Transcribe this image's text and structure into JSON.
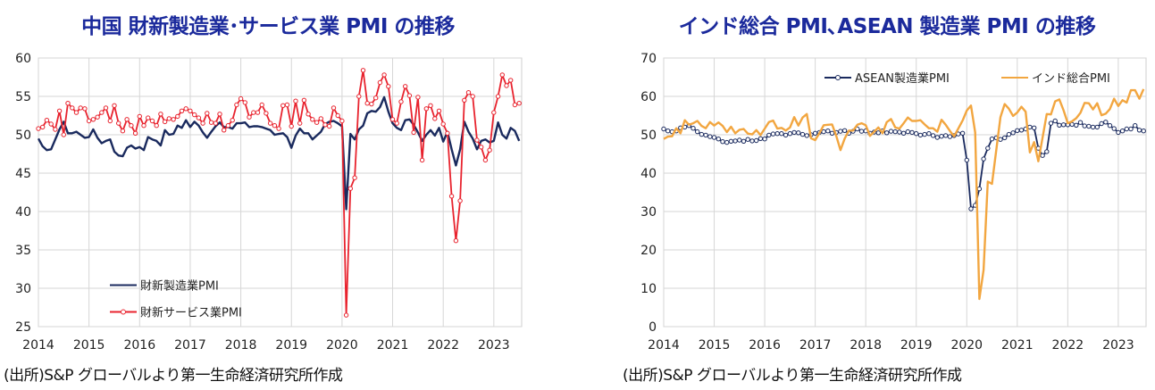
{
  "chart_data": [
    {
      "type": "line",
      "title": "中国  財新製造業･サービス業 PMI の推移",
      "source": "(出所)S&P グローバルより第一生命経済研究所作成",
      "ylim": [
        25,
        60
      ],
      "yticks": [
        25,
        30,
        35,
        40,
        45,
        50,
        55,
        60
      ],
      "xlim": [
        2014.0,
        2023.55
      ],
      "xticks": [
        2014,
        2015,
        2016,
        2017,
        2018,
        2019,
        2020,
        2021,
        2022,
        2023
      ],
      "grid": true,
      "legend_position": "lower-left",
      "series": [
        {
          "name": "財新製造業PMI",
          "color": "#1a2a5e",
          "marker": false,
          "values": [
            49.5,
            48.5,
            48.0,
            48.1,
            49.4,
            50.7,
            51.7,
            50.2,
            50.2,
            50.4,
            50.0,
            49.6,
            49.7,
            50.7,
            49.6,
            48.9,
            49.2,
            49.4,
            47.8,
            47.3,
            47.2,
            48.3,
            48.6,
            48.2,
            48.4,
            48.0,
            49.7,
            49.4,
            49.2,
            48.6,
            50.6,
            50.0,
            50.1,
            51.2,
            50.9,
            51.9,
            51.0,
            51.7,
            51.2,
            50.3,
            49.6,
            50.4,
            51.1,
            51.6,
            51.0,
            51.0,
            50.8,
            51.5,
            51.5,
            51.6,
            51.0,
            51.1,
            51.1,
            51.0,
            50.8,
            50.6,
            50.0,
            50.1,
            50.2,
            49.7,
            48.3,
            49.9,
            50.8,
            50.2,
            50.2,
            49.4,
            49.9,
            50.4,
            51.4,
            51.7,
            51.8,
            51.5,
            51.1,
            40.3,
            50.1,
            49.4,
            50.7,
            51.2,
            52.8,
            53.1,
            53.0,
            53.6,
            54.9,
            53.0,
            51.5,
            50.9,
            50.6,
            51.9,
            52.0,
            51.3,
            50.3,
            49.2,
            50.0,
            50.6,
            49.9,
            50.9,
            49.1,
            50.4,
            48.1,
            46.0,
            48.1,
            51.7,
            50.4,
            49.5,
            48.1,
            49.2,
            49.4,
            49.0,
            49.2,
            51.6,
            50.0,
            49.5,
            50.9,
            50.5,
            49.2
          ]
        },
        {
          "name": "財新サービス業PMI",
          "color": "#e8232e",
          "marker": true,
          "values": [
            50.8,
            51.0,
            51.9,
            51.4,
            50.7,
            53.1,
            50.0,
            54.1,
            53.5,
            52.9,
            53.5,
            53.4,
            51.8,
            52.0,
            52.3,
            52.9,
            53.5,
            51.8,
            53.8,
            51.5,
            50.5,
            52.0,
            51.2,
            50.2,
            52.4,
            51.2,
            52.2,
            51.8,
            51.2,
            52.7,
            51.7,
            52.1,
            52.0,
            52.4,
            53.1,
            53.4,
            53.1,
            52.6,
            52.2,
            51.5,
            52.8,
            51.6,
            51.5,
            52.7,
            50.6,
            51.2,
            51.9,
            53.9,
            54.7,
            54.2,
            52.3,
            52.9,
            52.9,
            53.9,
            52.8,
            51.5,
            51.2,
            50.8,
            53.8,
            53.9,
            51.1,
            54.4,
            51.5,
            54.5,
            52.7,
            52.0,
            51.6,
            52.1,
            51.3,
            51.1,
            53.5,
            52.5,
            51.8,
            26.5,
            43.0,
            44.4,
            55.0,
            58.4,
            54.1,
            54.0,
            54.8,
            56.8,
            57.8,
            56.3,
            52.0,
            51.5,
            54.3,
            56.3,
            55.1,
            50.3,
            54.9,
            46.7,
            53.4,
            53.8,
            52.1,
            53.1,
            51.4,
            50.2,
            42.0,
            36.2,
            41.4,
            54.5,
            55.5,
            55.0,
            49.3,
            48.4,
            46.7,
            48.0,
            52.9,
            55.0,
            57.8,
            56.4,
            57.1,
            53.9,
            54.1
          ]
        }
      ]
    },
    {
      "type": "line",
      "title": "インド総合 PMI､ASEAN 製造業 PMI の推移",
      "source": "(出所)S&P グローバルより第一生命経済研究所作成",
      "ylim": [
        0,
        70
      ],
      "yticks": [
        0,
        10,
        20,
        30,
        40,
        50,
        60,
        70
      ],
      "xlim": [
        2014.0,
        2023.55
      ],
      "xticks": [
        2014,
        2015,
        2016,
        2017,
        2018,
        2019,
        2020,
        2021,
        2022,
        2023
      ],
      "grid": true,
      "legend_position": "top-right",
      "series": [
        {
          "name": "ASEAN製造業PMI",
          "color": "#1a2a5e",
          "marker": true,
          "values": [
            51.5,
            51.0,
            50.8,
            51.0,
            51.8,
            52.0,
            52.4,
            51.7,
            50.8,
            50.1,
            49.9,
            49.5,
            49.3,
            48.9,
            48.2,
            48.0,
            48.3,
            48.4,
            48.6,
            48.3,
            48.8,
            48.4,
            48.5,
            49.0,
            48.9,
            49.9,
            50.2,
            50.3,
            50.3,
            49.9,
            50.3,
            50.6,
            50.5,
            50.1,
            49.8,
            50.0,
            50.4,
            50.6,
            50.8,
            51.0,
            50.4,
            50.6,
            50.9,
            51.1,
            50.4,
            50.9,
            51.5,
            50.9,
            51.0,
            50.4,
            50.7,
            50.5,
            51.0,
            50.5,
            50.9,
            50.8,
            50.7,
            50.4,
            50.8,
            50.6,
            50.3,
            49.9,
            50.1,
            50.3,
            49.8,
            49.3,
            49.6,
            49.8,
            49.5,
            49.8,
            50.2,
            50.4,
            43.4,
            30.7,
            31.6,
            35.9,
            43.7,
            46.5,
            48.9,
            49.2,
            48.8,
            49.2,
            50.1,
            50.5,
            51.1,
            51.2,
            51.5,
            52.0,
            51.8,
            46.5,
            44.6,
            45.6,
            53.0,
            53.6,
            52.5,
            52.6,
            52.6,
            52.7,
            52.5,
            53.2,
            52.3,
            52.2,
            52.0,
            52.0,
            52.9,
            53.3,
            52.4,
            51.6,
            50.6,
            51.0,
            51.5,
            51.5,
            52.4,
            51.2,
            51.0
          ]
        },
        {
          "name": "インド総合PMI",
          "color": "#f2a640",
          "marker": false,
          "values": [
            48.9,
            49.5,
            49.6,
            51.7,
            50.4,
            53.8,
            52.6,
            53.0,
            53.6,
            52.3,
            51.7,
            53.3,
            52.4,
            53.2,
            52.3,
            50.7,
            52.1,
            50.4,
            51.3,
            51.5,
            50.3,
            50.1,
            51.2,
            49.9,
            51.6,
            53.3,
            53.7,
            51.6,
            51.8,
            51.1,
            51.9,
            54.6,
            52.4,
            54.5,
            55.4,
            49.1,
            48.6,
            50.4,
            52.5,
            52.6,
            52.7,
            49.7,
            46.0,
            49.0,
            51.1,
            51.1,
            52.6,
            53.0,
            52.5,
            49.7,
            50.8,
            51.9,
            50.4,
            53.3,
            54.1,
            51.9,
            51.6,
            53.0,
            54.5,
            53.6,
            53.6,
            53.8,
            52.7,
            51.7,
            51.7,
            50.8,
            53.9,
            52.6,
            51.0,
            49.6,
            51.6,
            53.7,
            56.3,
            57.6,
            50.6,
            7.2,
            14.8,
            37.8,
            37.2,
            46.0,
            54.6,
            58.0,
            56.8,
            54.9,
            55.8,
            57.3,
            56.0,
            45.4,
            48.1,
            43.1,
            49.2,
            55.4,
            55.3,
            58.7,
            59.2,
            56.4,
            53.0,
            53.5,
            54.3,
            55.7,
            58.3,
            58.2,
            56.6,
            58.2,
            55.1,
            55.5,
            56.7,
            59.4,
            57.5,
            59.0,
            58.4,
            61.6,
            61.6,
            59.4,
            61.9
          ]
        }
      ]
    }
  ]
}
